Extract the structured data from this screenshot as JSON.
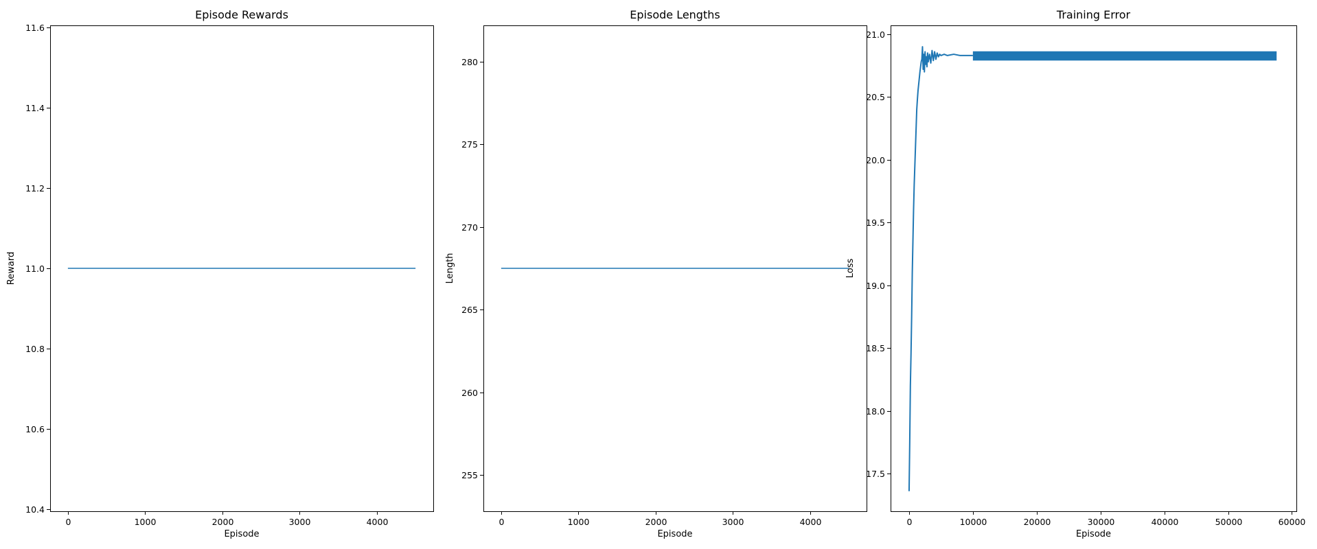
{
  "figure": {
    "background": "#ffffff",
    "line_color": "#1f77b4"
  },
  "chart_data": [
    {
      "type": "line",
      "title": "Episode Rewards",
      "xlabel": "Episode",
      "ylabel": "Reward",
      "xlim": [
        -230,
        4730
      ],
      "ylim": [
        10.395,
        11.605
      ],
      "xticks": [
        0,
        1000,
        2000,
        3000,
        4000
      ],
      "xtick_labels": [
        "0",
        "1000",
        "2000",
        "3000",
        "4000"
      ],
      "yticks": [
        10.4,
        10.6,
        10.8,
        11.0,
        11.2,
        11.4,
        11.6
      ],
      "ytick_labels": [
        "10.4",
        "10.6",
        "10.8",
        "11.0",
        "11.2",
        "11.4",
        "11.6"
      ],
      "grid": false,
      "series": [
        {
          "x": [
            0,
            4500
          ],
          "y": [
            11.0,
            11.0
          ]
        }
      ]
    },
    {
      "type": "line",
      "title": "Episode Lengths",
      "xlabel": "Episode",
      "ylabel": "Length",
      "xlim": [
        -230,
        4730
      ],
      "ylim": [
        252.8,
        282.2
      ],
      "xticks": [
        0,
        1000,
        2000,
        3000,
        4000
      ],
      "xtick_labels": [
        "0",
        "1000",
        "2000",
        "3000",
        "4000"
      ],
      "yticks": [
        255,
        260,
        265,
        270,
        275,
        280
      ],
      "ytick_labels": [
        "255",
        "260",
        "265",
        "270",
        "275",
        "280"
      ],
      "grid": false,
      "series": [
        {
          "x": [
            0,
            4500
          ],
          "y": [
            267.5,
            267.5
          ]
        }
      ]
    },
    {
      "type": "line",
      "title": "Training Error",
      "xlabel": "Episode",
      "ylabel": "Loss",
      "xlim": [
        -2900,
        60700
      ],
      "ylim": [
        17.2,
        21.07
      ],
      "xticks": [
        0,
        10000,
        20000,
        30000,
        40000,
        50000,
        60000
      ],
      "xtick_labels": [
        "0",
        "10000",
        "20000",
        "30000",
        "40000",
        "50000",
        "60000"
      ],
      "yticks": [
        17.5,
        18.0,
        18.5,
        19.0,
        19.5,
        20.0,
        20.5,
        21.0
      ],
      "ytick_labels": [
        "17.5",
        "18.0",
        "18.5",
        "19.0",
        "19.5",
        "20.0",
        "20.5",
        "21.0"
      ],
      "grid": false,
      "band": {
        "x_start": 10000,
        "x_end": 57600,
        "y_low": 20.79,
        "y_high": 20.85
      },
      "series": [
        {
          "x": [
            0,
            100,
            200,
            300,
            400,
            500,
            600,
            700,
            800,
            900,
            1000,
            1100,
            1200,
            1300,
            1400,
            1500,
            1600,
            1700,
            1800,
            1900,
            2000,
            2100,
            2200,
            2300,
            2400,
            2500,
            2600,
            2700,
            2800,
            2900,
            3000,
            3200,
            3400,
            3600,
            3800,
            4000,
            4200,
            4400,
            4600,
            4800,
            5000,
            5500,
            6000,
            7000,
            8000,
            9000,
            10000
          ],
          "y": [
            17.36,
            17.75,
            18.2,
            18.45,
            18.75,
            19.1,
            19.35,
            19.6,
            19.8,
            19.95,
            20.1,
            20.25,
            20.4,
            20.48,
            20.55,
            20.6,
            20.65,
            20.7,
            20.74,
            20.78,
            20.8,
            20.9,
            20.72,
            20.84,
            20.7,
            20.86,
            20.76,
            20.82,
            20.74,
            20.85,
            20.78,
            20.84,
            20.77,
            20.87,
            20.79,
            20.86,
            20.8,
            20.85,
            20.82,
            20.84,
            20.83,
            20.84,
            20.83,
            20.84,
            20.83,
            20.83,
            20.83
          ]
        }
      ]
    }
  ]
}
